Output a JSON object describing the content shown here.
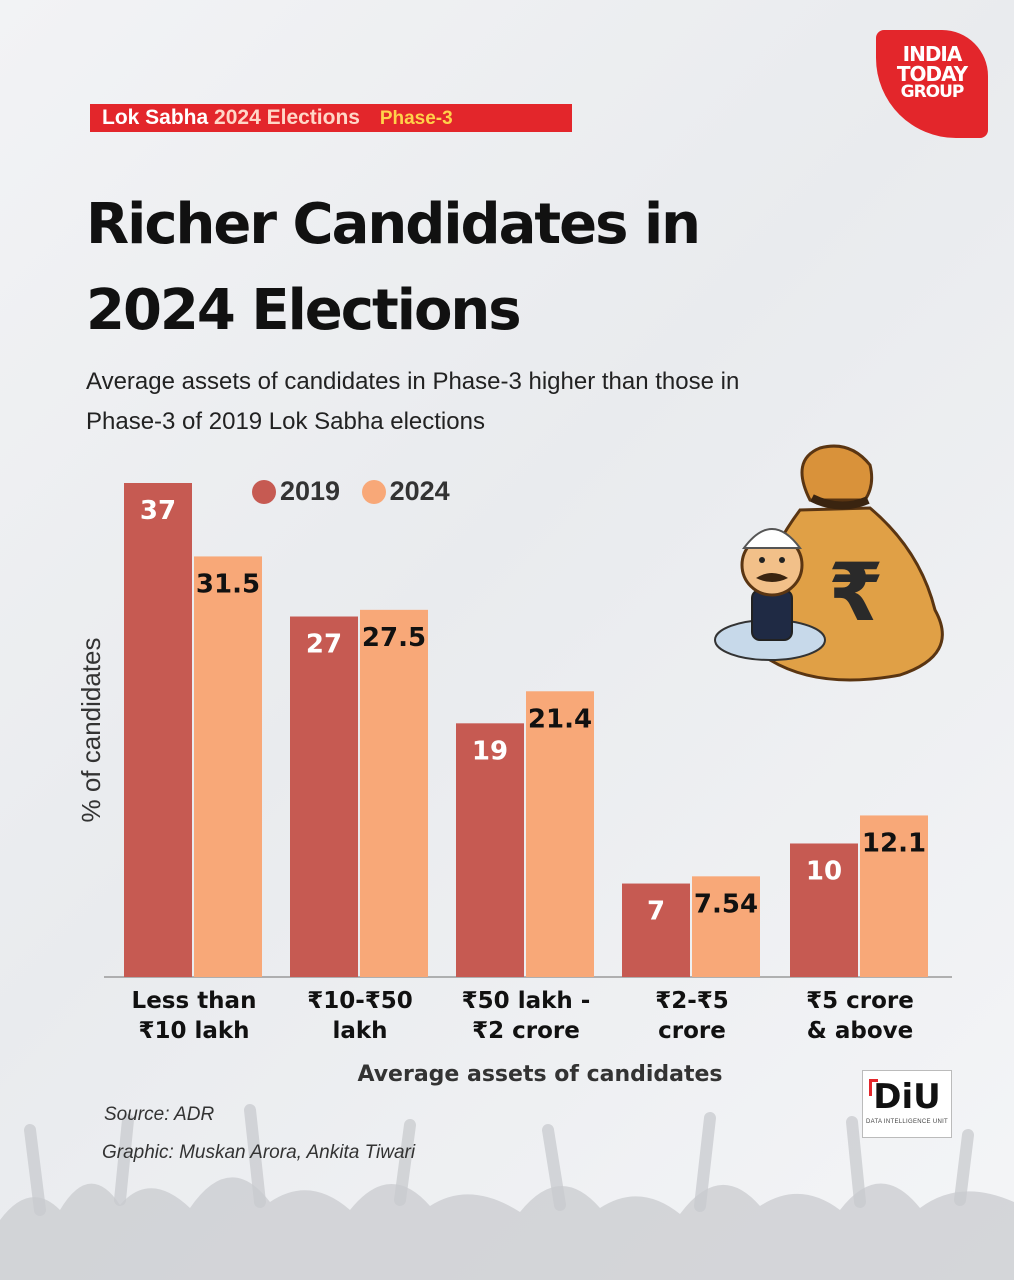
{
  "brand": {
    "line1": "INDIA",
    "line2": "TODAY",
    "line3": "GROUP"
  },
  "banner": {
    "part1": "Lok Sabha",
    "part2": "2024 Elections",
    "part3": "Phase-3"
  },
  "title": "Richer Candidates in 2024 Elections",
  "subtitle": "Average assets of candidates in Phase-3 higher than those in Phase-3 of 2019 Lok Sabha elections",
  "colors": {
    "accent": "#e3262b",
    "s2019": "#c65a52",
    "s2024": "#f8a878"
  },
  "chart_data": {
    "type": "bar",
    "categories": [
      [
        "Less than",
        "₹10 lakh"
      ],
      [
        "₹10-₹50",
        "lakh"
      ],
      [
        "₹50 lakh -",
        "₹2 crore"
      ],
      [
        "₹2-₹5",
        "crore"
      ],
      [
        "₹5 crore",
        "& above"
      ]
    ],
    "series": [
      {
        "name": "2019",
        "values": [
          37,
          27,
          19,
          7,
          10
        ],
        "labels": [
          "37",
          "27",
          "19",
          "7",
          "10"
        ]
      },
      {
        "name": "2024",
        "values": [
          31.5,
          27.5,
          21.4,
          7.54,
          12.1
        ],
        "labels": [
          "31.5",
          "27.5",
          "21.4",
          "7.54",
          "12.1"
        ]
      }
    ],
    "xlabel": "Average assets of candidates",
    "ylabel": "% of candidates",
    "ylim": [
      0,
      37
    ],
    "grid": false,
    "legend": "top"
  },
  "source": "Source: ADR",
  "credit": "Graphic: Muskan Arora, Ankita Tiwari",
  "diu": {
    "main": "DiU",
    "sub": "DATA INTELLIGENCE UNIT"
  }
}
